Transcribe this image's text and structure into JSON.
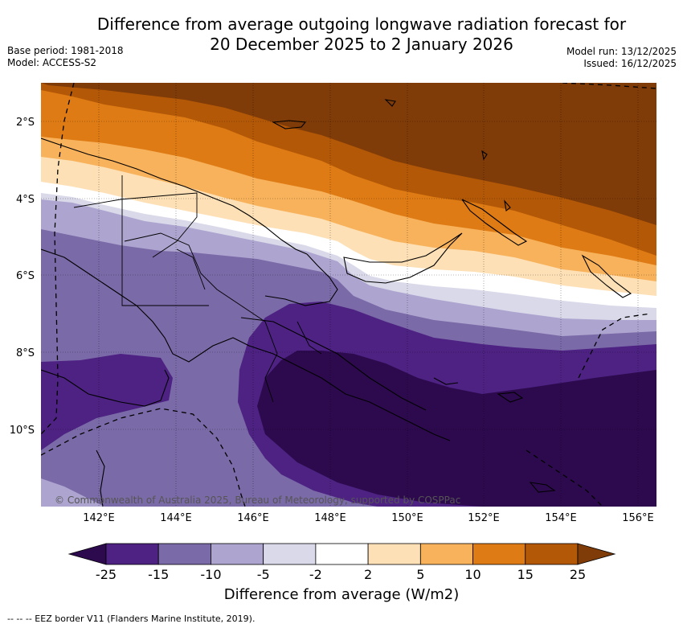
{
  "title": {
    "line1": "Difference from average outgoing longwave radiation forecast for",
    "line2": "20 December 2025 to 2 January 2026"
  },
  "meta": {
    "base_period": "Base period: 1981-2018",
    "model": "Model: ACCESS-S2",
    "model_run": "Model run: 13/12/2025",
    "issued": "Issued: 16/12/2025"
  },
  "map": {
    "lat_labels": [
      "2°S",
      "4°S",
      "6°S",
      "8°S",
      "10°S"
    ],
    "lon_labels": [
      "142°E",
      "144°E",
      "146°E",
      "148°E",
      "150°E",
      "152°E",
      "154°E",
      "156°E"
    ],
    "copyright": "© Commonwealth of Australia 2025, Bureau of Meteorology, supported by COSPPac"
  },
  "colorbar": {
    "levels": [
      "-25",
      "-15",
      "-10",
      "-5",
      "-2",
      "2",
      "5",
      "10",
      "15",
      "25"
    ],
    "colors": [
      "#2d0a4e",
      "#4d2282",
      "#7b6aa8",
      "#ada5cf",
      "#d9d9ea",
      "#ffffff",
      "#fde0b6",
      "#f8b25b",
      "#de7b14",
      "#b35806",
      "#7f3b08"
    ],
    "title": "Difference from average (W/m2)"
  },
  "footer": "-- -- -- EEZ border V11 (Flanders Marine Institute, 2019)."
}
